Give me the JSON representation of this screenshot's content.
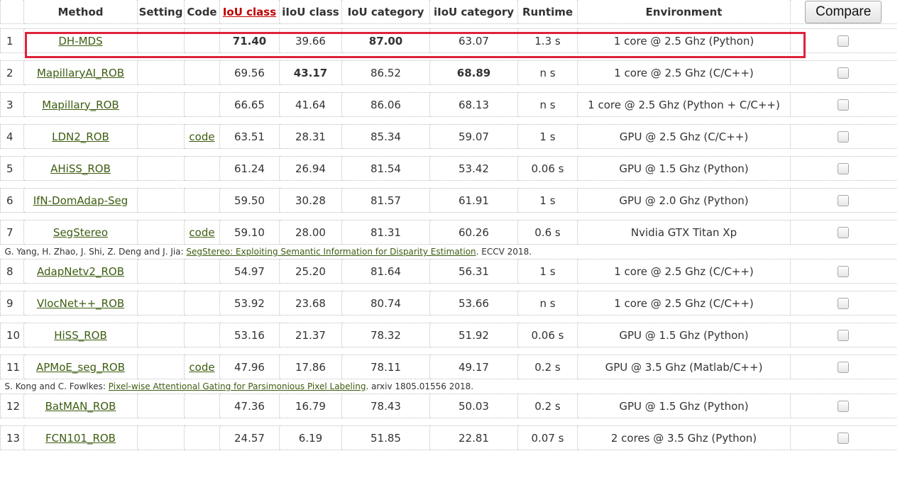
{
  "headers": {
    "rank": "",
    "method": "Method",
    "setting": "Setting",
    "code": "Code",
    "iou_class": "IoU class",
    "iiou_class": "iIoU class",
    "iou_category": "IoU category",
    "iiou_category": "iIoU category",
    "runtime": "Runtime",
    "environment": "Environment",
    "compare_button": "Compare"
  },
  "rows": [
    {
      "rank": "1",
      "method": "DH-MDS",
      "code": "",
      "iou_class": "71.40",
      "iiou_class": "39.66",
      "iou_category": "87.00",
      "iiou_category": "63.07",
      "runtime": "1.3 s",
      "environment": "1 core @ 2.5 Ghz (Python)"
    },
    {
      "rank": "2",
      "method": "MapillaryAI_ROB",
      "code": "",
      "iou_class": "69.56",
      "iiou_class": "43.17",
      "iou_category": "86.52",
      "iiou_category": "68.89",
      "runtime": "n s",
      "environment": "1 core @ 2.5 Ghz (C/C++)"
    },
    {
      "rank": "3",
      "method": "Mapillary_ROB",
      "code": "",
      "iou_class": "66.65",
      "iiou_class": "41.64",
      "iou_category": "86.06",
      "iiou_category": "68.13",
      "runtime": "n s",
      "environment": "1 core @ 2.5 Ghz (Python + C/C++)"
    },
    {
      "rank": "4",
      "method": "LDN2_ROB",
      "code": "code",
      "iou_class": "63.51",
      "iiou_class": "28.31",
      "iou_category": "85.34",
      "iiou_category": "59.07",
      "runtime": "1 s",
      "environment": "GPU @ 2.5 Ghz (C/C++)"
    },
    {
      "rank": "5",
      "method": "AHiSS_ROB",
      "code": "",
      "iou_class": "61.24",
      "iiou_class": "26.94",
      "iou_category": "81.54",
      "iiou_category": "53.42",
      "runtime": "0.06 s",
      "environment": "GPU @ 1.5 Ghz (Python)"
    },
    {
      "rank": "6",
      "method": "IfN-DomAdap-Seg",
      "code": "",
      "iou_class": "59.50",
      "iiou_class": "30.28",
      "iou_category": "81.57",
      "iiou_category": "61.91",
      "runtime": "1 s",
      "environment": "GPU @ 2.0 Ghz (Python)"
    },
    {
      "rank": "7",
      "method": "SegStereo",
      "code": "code",
      "iou_class": "59.10",
      "iiou_class": "28.00",
      "iou_category": "81.31",
      "iiou_category": "60.26",
      "runtime": "0.6 s",
      "environment": "Nvidia GTX Titan Xp"
    },
    {
      "rank": "8",
      "method": "AdapNetv2_ROB",
      "code": "",
      "iou_class": "54.97",
      "iiou_class": "25.20",
      "iou_category": "81.64",
      "iiou_category": "56.31",
      "runtime": "1 s",
      "environment": "1 core @ 2.5 Ghz (C/C++)"
    },
    {
      "rank": "9",
      "method": "VlocNet++_ROB",
      "code": "",
      "iou_class": "53.92",
      "iiou_class": "23.68",
      "iou_category": "80.74",
      "iiou_category": "53.66",
      "runtime": "n s",
      "environment": "1 core @ 2.5 Ghz (C/C++)"
    },
    {
      "rank": "10",
      "method": "HiSS_ROB",
      "code": "",
      "iou_class": "53.16",
      "iiou_class": "21.37",
      "iou_category": "78.32",
      "iiou_category": "51.92",
      "runtime": "0.06 s",
      "environment": "GPU @ 1.5 Ghz (Python)"
    },
    {
      "rank": "11",
      "method": "APMoE_seg_ROB",
      "code": "code",
      "iou_class": "47.96",
      "iiou_class": "17.86",
      "iou_category": "78.11",
      "iiou_category": "49.17",
      "runtime": "0.2 s",
      "environment": "GPU @ 3.5 Ghz (Matlab/C++)"
    },
    {
      "rank": "12",
      "method": "BatMAN_ROB",
      "code": "",
      "iou_class": "47.36",
      "iiou_class": "16.79",
      "iou_category": "78.43",
      "iiou_category": "50.03",
      "runtime": "0.2 s",
      "environment": "GPU @ 1.5 Ghz (Python)"
    },
    {
      "rank": "13",
      "method": "FCN101_ROB",
      "code": "",
      "iou_class": "24.57",
      "iiou_class": "6.19",
      "iou_category": "51.85",
      "iiou_category": "22.81",
      "runtime": "0.07 s",
      "environment": "2 cores @ 3.5 Ghz (Python)"
    }
  ],
  "refs": {
    "segstereo": {
      "authors": "G. Yang, H. Zhao, J. Shi, Z. Deng and J. Jia: ",
      "title": "SegStereo: Exploiting Semantic Information for Disparity Estimation",
      "venue": ". ECCV 2018."
    },
    "apmoe": {
      "authors": "S. Kong and C. Fowlkes: ",
      "title": "Pixel-wise Attentional Gating for Parsimonious Pixel Labeling",
      "venue": ". arxiv 1805.01556 2018."
    }
  },
  "colors": {
    "link": "#3d5d10",
    "sorted_header": "#c00000",
    "highlight_box": "#e0213a"
  }
}
